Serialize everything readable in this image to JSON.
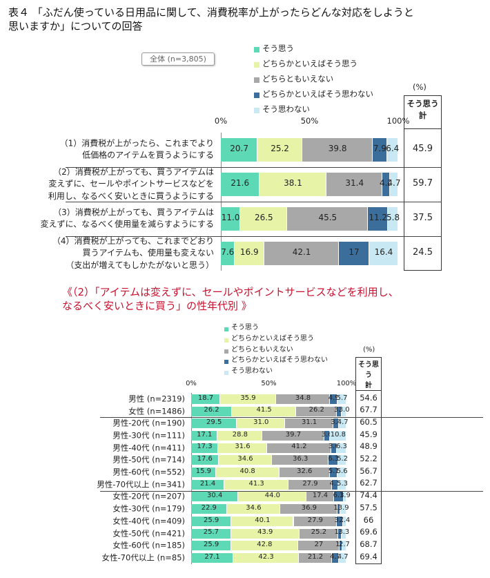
{
  "chart_data": [
    {
      "type": "stacked-bar",
      "title": "表４ 「ふだん使っている日用品に関して、消費税率が上がったらどんな対応をしようと\n思いますか」についての回答",
      "badge": "全体 (n=3,805)",
      "categories": [
        "（1）消費税が上がったら、これまでより\n低価格のアイテムを買うようにする",
        "（2）消費税が上がっても、買うアイテムは\n変えずに、セールやポイントサービスなどを\n利用し、なるべく安いときに買うようにする",
        "（3）消費税が上がっても、買うアイテムは\n変えずに、なるべく使用量を減らすようにする",
        "（4）消費税が上がっても、これまでどおり\n買うアイテムも、使用量も変えない\n（支出が増えてもしかたがないと思う）"
      ],
      "series": [
        {
          "name": "そう思う",
          "color": "#5ed9b6",
          "values": [
            20.7,
            21.6,
            11.0,
            7.6
          ],
          "value_labels": [
            "20.7",
            "21.6",
            "11.0",
            "7.6"
          ]
        },
        {
          "name": "どちらかといえばそう思う",
          "color": "#e7f4a8",
          "values": [
            25.2,
            38.1,
            26.5,
            16.9
          ]
        },
        {
          "name": "どちらともいえない",
          "color": "#a8a8a8",
          "values": [
            39.8,
            31.4,
            45.5,
            42.1
          ]
        },
        {
          "name": "どちらかといえばそう思わない",
          "color": "#3c6e9c",
          "values": [
            7.9,
            4.2,
            11.2,
            17.0
          ]
        },
        {
          "name": "そう思わない",
          "color": "#c8e8f3",
          "values": [
            6.4,
            4.7,
            5.8,
            16.4
          ]
        }
      ],
      "xlim": [
        0,
        100
      ],
      "xticks": [
        {
          "value": 0,
          "label": "0%"
        },
        {
          "value": 50,
          "label": "50%"
        },
        {
          "value": 100,
          "label": "100%"
        }
      ],
      "total_column": {
        "unit": "(%)",
        "header": "そう思う\n計",
        "values": [
          45.9,
          59.7,
          37.5,
          24.5
        ]
      }
    },
    {
      "type": "stacked-bar",
      "title": "《（2）「アイテムは変えずに、セールやポイントサービスなどを利用し、\nなるべく安いときに買う」の性年代別 》",
      "categories": [
        "男性 (n=2319)",
        "女性 (n=1486)",
        "男性-20代 (n=190)",
        "男性-30代 (n=111)",
        "男性-40代 (n=411)",
        "男性-50代 (n=714)",
        "男性-60代 (n=552)",
        "男性-70代以上 (n=341)",
        "女性-20代 (n=207)",
        "女性-30代 (n=179)",
        "女性-40代 (n=409)",
        "女性-50代 (n=421)",
        "女性-60代 (n=185)",
        "女性-70代以上 (n=85)"
      ],
      "series": [
        {
          "name": "そう思う",
          "color": "#5ed9b6",
          "values": [
            18.7,
            26.2,
            29.5,
            17.1,
            17.3,
            17.6,
            15.9,
            21.4,
            30.4,
            22.9,
            25.9,
            25.7,
            25.9,
            27.1
          ]
        },
        {
          "name": "どちらかといえばそう思う",
          "color": "#e7f4a8",
          "values": [
            35.9,
            41.5,
            31.0,
            28.8,
            31.6,
            34.6,
            40.8,
            41.3,
            44.0,
            34.6,
            40.1,
            43.9,
            42.8,
            42.3
          ],
          "value_labels": [
            "35.9",
            "41.5",
            "31.0",
            "28.8",
            "31.6",
            "34.6",
            "40.8",
            "41.3",
            "44.0",
            "34.6",
            "40.1",
            "43.9",
            "42.8",
            "42.3"
          ]
        },
        {
          "name": "どちらともいえない",
          "color": "#a8a8a8",
          "values": [
            34.8,
            26.2,
            31.1,
            39.7,
            41.2,
            36.3,
            32.6,
            27.9,
            17.4,
            36.9,
            27.9,
            25.2,
            27.0,
            21.2
          ]
        },
        {
          "name": "どちらかといえばそう思わない",
          "color": "#3c6e9c",
          "values": [
            4.9,
            3.1,
            3.7,
            3.6,
            3.6,
            6.3,
            5.1,
            4.1,
            6.3,
            1.7,
            3.7,
            1.9,
            1.6,
            4.7
          ]
        },
        {
          "name": "そう思わない",
          "color": "#c8e8f3",
          "values": [
            5.7,
            3.0,
            4.7,
            10.8,
            6.3,
            5.2,
            5.6,
            5.3,
            1.9,
            3.9,
            2.4,
            3.3,
            2.7,
            4.7
          ],
          "value_labels": [
            "5.7",
            "3.0",
            "4.7",
            "10.8",
            "6.3",
            "5.2",
            "5.6",
            "5.3",
            "1.9",
            "3.9",
            "2.4",
            "3.3",
            "2.7",
            "4.7"
          ]
        }
      ],
      "xlim": [
        0,
        100
      ],
      "xticks": [
        {
          "value": 0,
          "label": "0%"
        },
        {
          "value": 50,
          "label": "50%"
        },
        {
          "value": 100,
          "label": "100%"
        }
      ],
      "total_column": {
        "unit": "(%)",
        "header": "そう思う\n計",
        "values": [
          54.6,
          67.7,
          60.5,
          45.9,
          48.9,
          52.2,
          56.7,
          62.7,
          74.4,
          57.5,
          66.0,
          69.6,
          68.7,
          69.4
        ]
      }
    }
  ]
}
